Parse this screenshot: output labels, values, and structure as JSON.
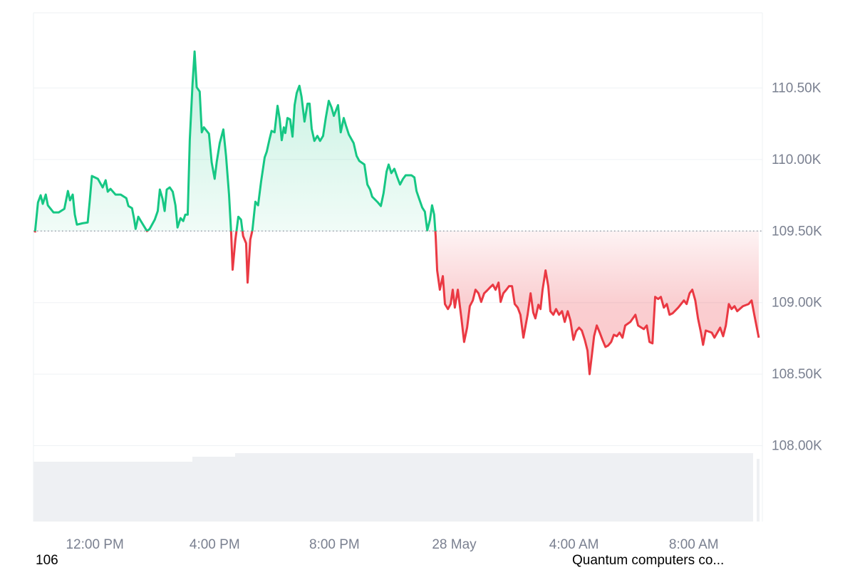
{
  "chart_data": {
    "type": "baseline-line",
    "baseline": 109500,
    "colors": {
      "above": "#16c784",
      "below": "#ea3943"
    },
    "grid": true,
    "xlim": [
      9.95,
      34.29
    ],
    "ylim": [
      107470,
      111025
    ],
    "xticks": [
      {
        "value": 12,
        "label": "12:00 PM"
      },
      {
        "value": 16,
        "label": "4:00 PM"
      },
      {
        "value": 20,
        "label": "8:00 PM"
      },
      {
        "value": 24,
        "label": "28 May"
      },
      {
        "value": 28,
        "label": "4:00 AM"
      },
      {
        "value": 32,
        "label": "8:00 AM"
      }
    ],
    "yticks": [
      {
        "value": 108000,
        "label": "108.00K"
      },
      {
        "value": 108500,
        "label": "108.50K"
      },
      {
        "value": 109000,
        "label": "109.00K"
      },
      {
        "value": 109500,
        "label": "109.50K"
      },
      {
        "value": 110000,
        "label": "110.00K"
      },
      {
        "value": 110500,
        "label": "110.50K"
      }
    ],
    "annotations": [
      "106",
      "Quantum computers co..."
    ],
    "x": [
      10.0,
      10.1,
      10.19,
      10.26,
      10.36,
      10.43,
      10.62,
      10.79,
      10.98,
      11.1,
      11.17,
      11.26,
      11.33,
      11.4,
      11.6,
      11.76,
      11.83,
      11.9,
      12.1,
      12.26,
      12.36,
      12.43,
      12.52,
      12.69,
      12.86,
      13.05,
      13.12,
      13.24,
      13.31,
      13.36,
      13.45,
      13.55,
      13.74,
      13.83,
      14.0,
      14.1,
      14.17,
      14.26,
      14.33,
      14.4,
      14.5,
      14.6,
      14.69,
      14.76,
      14.86,
      14.95,
      15.02,
      15.1,
      15.17,
      15.26,
      15.33,
      15.4,
      15.5,
      15.57,
      15.64,
      15.81,
      15.9,
      16.0,
      16.07,
      16.17,
      16.29,
      16.38,
      16.48,
      16.55,
      16.6,
      16.69,
      16.79,
      16.88,
      16.95,
      17.05,
      17.1,
      17.19,
      17.26,
      17.36,
      17.45,
      17.55,
      17.67,
      17.74,
      17.83,
      17.9,
      18.0,
      18.1,
      18.17,
      18.24,
      18.31,
      18.36,
      18.43,
      18.52,
      18.6,
      18.67,
      18.74,
      18.83,
      18.9,
      19.0,
      19.1,
      19.17,
      19.24,
      19.33,
      19.43,
      19.52,
      19.62,
      19.71,
      19.81,
      19.9,
      19.98,
      20.12,
      20.21,
      20.31,
      20.38,
      20.48,
      20.64,
      20.74,
      20.83,
      21.0,
      21.1,
      21.19,
      21.26,
      21.45,
      21.55,
      21.64,
      21.74,
      21.81,
      21.9,
      22.0,
      22.1,
      22.19,
      22.29,
      22.38,
      22.57,
      22.67,
      22.74,
      22.83,
      22.93,
      23.02,
      23.1,
      23.19,
      23.26,
      23.33,
      23.38,
      23.43,
      23.52,
      23.62,
      23.69,
      23.79,
      23.88,
      23.95,
      24.02,
      24.12,
      24.24,
      24.33,
      24.43,
      24.52,
      24.62,
      24.71,
      24.81,
      24.9,
      25.0,
      25.1,
      25.19,
      25.29,
      25.38,
      25.48,
      25.55,
      25.64,
      25.74,
      25.83,
      25.93,
      26.02,
      26.12,
      26.21,
      26.31,
      26.45,
      26.55,
      26.64,
      26.71,
      26.81,
      26.88,
      26.95,
      27.05,
      27.14,
      27.21,
      27.31,
      27.4,
      27.5,
      27.6,
      27.69,
      27.79,
      27.88,
      27.98,
      28.07,
      28.17,
      28.26,
      28.36,
      28.45,
      28.52,
      28.6,
      28.67,
      28.76,
      28.86,
      28.95,
      29.05,
      29.14,
      29.24,
      29.33,
      29.43,
      29.52,
      29.62,
      29.71,
      29.88,
      30.05,
      30.14,
      30.33,
      30.43,
      30.52,
      30.62,
      30.71,
      30.81,
      30.9,
      31.0,
      31.1,
      31.19,
      31.29,
      31.48,
      31.67,
      31.76,
      31.86,
      31.95,
      32.05,
      32.14,
      32.24,
      32.31,
      32.4,
      32.6,
      32.69,
      32.88,
      32.98,
      33.07,
      33.17,
      33.26,
      33.36,
      33.45,
      33.64,
      33.83,
      33.93,
      34.02,
      34.17
    ],
    "values": [
      109490,
      109700,
      109750,
      109690,
      109755,
      109680,
      109630,
      109630,
      109655,
      109780,
      109715,
      109755,
      109615,
      109545,
      109555,
      109560,
      109715,
      109885,
      109865,
      109805,
      109855,
      109775,
      109795,
      109755,
      109755,
      109730,
      109675,
      109660,
      109585,
      109515,
      109600,
      109565,
      109500,
      109515,
      109580,
      109640,
      109790,
      109725,
      109640,
      109790,
      109805,
      109775,
      109680,
      109525,
      109590,
      109570,
      109615,
      109615,
      110140,
      110525,
      110755,
      110505,
      110475,
      110190,
      110225,
      110180,
      109980,
      109865,
      109985,
      110115,
      110210,
      110025,
      109755,
      109490,
      109230,
      109435,
      109600,
      109580,
      109465,
      109415,
      109140,
      109440,
      109505,
      109705,
      109680,
      109845,
      110015,
      110055,
      110140,
      110200,
      110190,
      110375,
      110285,
      110135,
      110225,
      110185,
      110290,
      110280,
      110160,
      110380,
      110465,
      110515,
      110440,
      110265,
      110390,
      110390,
      110215,
      110130,
      110165,
      110130,
      110165,
      110290,
      110410,
      110365,
      110305,
      110380,
      110190,
      110290,
      110240,
      110175,
      110115,
      110025,
      109990,
      109965,
      109825,
      109790,
      109740,
      109700,
      109675,
      109765,
      109915,
      109965,
      109905,
      109935,
      109875,
      109825,
      109865,
      109890,
      109890,
      109875,
      109780,
      109725,
      109665,
      109635,
      109505,
      109580,
      109680,
      109615,
      109465,
      109225,
      109090,
      109185,
      108990,
      108955,
      108990,
      109090,
      108965,
      109090,
      108890,
      108725,
      108825,
      108975,
      109015,
      109090,
      109065,
      109005,
      109065,
      109085,
      109105,
      109125,
      109090,
      109140,
      109005,
      109065,
      109090,
      109115,
      109115,
      108990,
      108965,
      108915,
      108755,
      108915,
      109065,
      108930,
      108890,
      108985,
      108955,
      109090,
      109225,
      109115,
      108940,
      108915,
      108955,
      108915,
      108940,
      108865,
      108940,
      108875,
      108740,
      108800,
      108825,
      108805,
      108740,
      108665,
      108500,
      108640,
      108765,
      108840,
      108790,
      108740,
      108690,
      108700,
      108725,
      108775,
      108765,
      108790,
      108755,
      108840,
      108865,
      108915,
      108840,
      108815,
      108840,
      108725,
      108715,
      109040,
      109025,
      109040,
      108965,
      108990,
      108915,
      108925,
      108965,
      109015,
      108990,
      109065,
      109090,
      109015,
      108890,
      108790,
      108705,
      108805,
      108790,
      108755,
      108825,
      108765,
      108840,
      108990,
      108955,
      108975,
      108940,
      108975,
      108990,
      109015,
      108915,
      108755
    ]
  }
}
